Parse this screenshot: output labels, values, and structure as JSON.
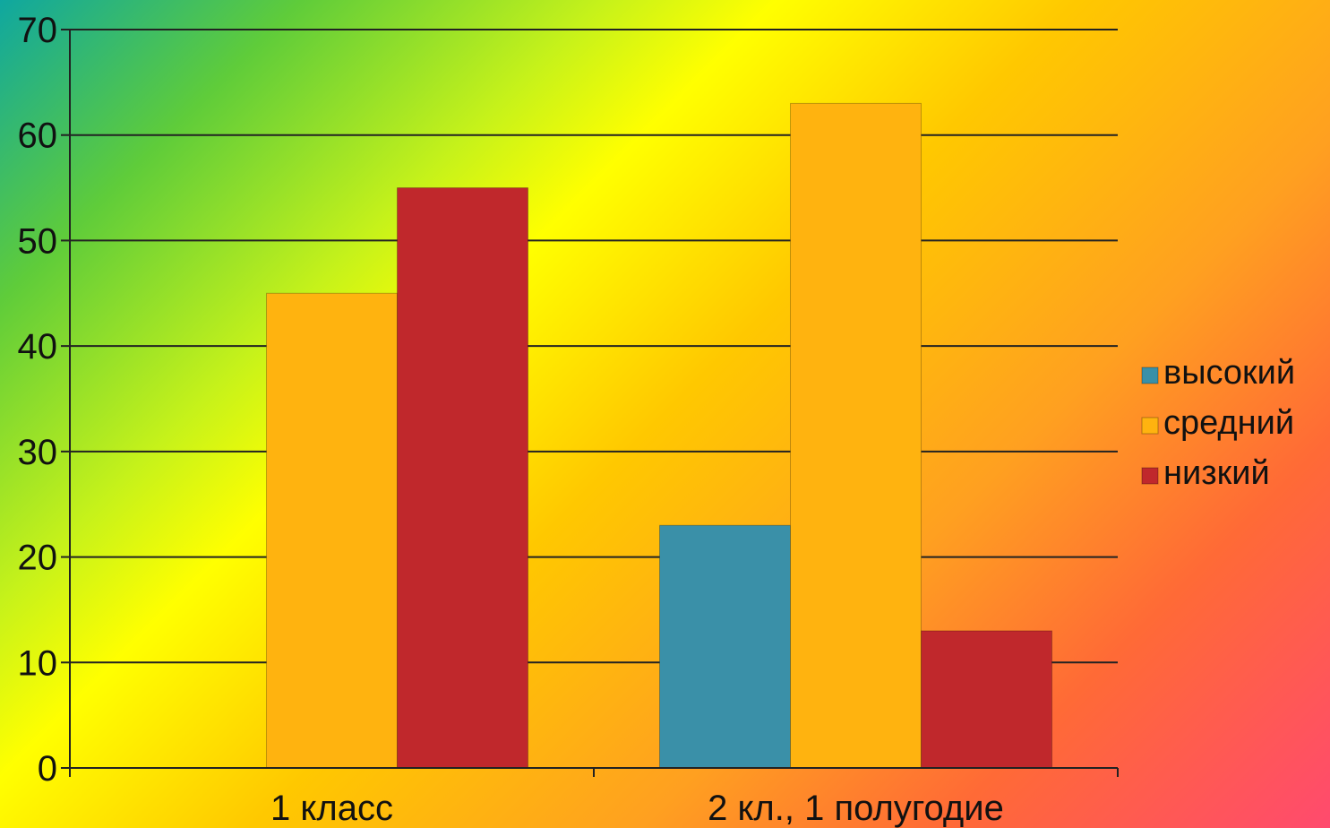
{
  "chart_data": {
    "type": "bar",
    "categories": [
      "1 класс",
      "2 кл., 1 полугодие"
    ],
    "series": [
      {
        "name": "высокий",
        "values": [
          0,
          23
        ],
        "color": "#3a90a8"
      },
      {
        "name": "средний",
        "values": [
          45,
          63
        ],
        "color": "#ffb30f"
      },
      {
        "name": "низкий",
        "values": [
          55,
          13
        ],
        "color": "#c0282c"
      }
    ],
    "ylim": [
      0,
      70
    ],
    "yticks": [
      "0",
      "10",
      "20",
      "30",
      "40",
      "50",
      "60",
      "70"
    ],
    "grid": true,
    "legend": "right",
    "title": "",
    "xlabel": "",
    "ylabel": ""
  }
}
